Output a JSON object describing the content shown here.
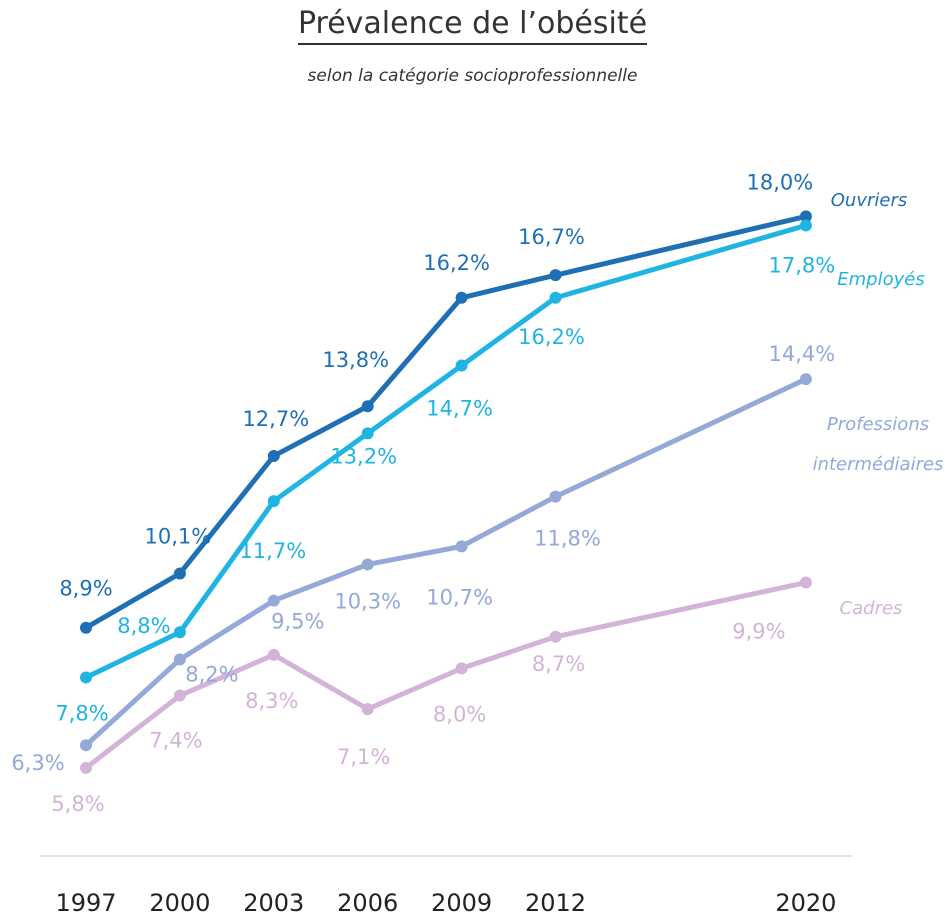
{
  "chart_data": {
    "type": "line",
    "title": "Prévalence de l’obésité",
    "subtitle": "selon la catégorie socioprofessionnelle",
    "x": [
      "1997",
      "2000",
      "2003",
      "2006",
      "2009",
      "2012",
      "2020"
    ],
    "series": [
      {
        "name": "Ouvriers",
        "color": "#1f6fb4",
        "values": [
          8.9,
          10.1,
          12.7,
          13.8,
          16.2,
          16.7,
          18.0
        ],
        "labels": [
          "8,9%",
          "10,1%",
          "12,7%",
          "13,8%",
          "16,2%",
          "16,7%",
          "18,0%"
        ]
      },
      {
        "name": "Employés",
        "color": "#20b4e3",
        "values": [
          7.8,
          8.8,
          11.7,
          13.2,
          14.7,
          16.2,
          17.8
        ],
        "labels": [
          "7,8%",
          "8,8%",
          "11,7%",
          "13,2%",
          "14,7%",
          "16,2%",
          "17,8%"
        ]
      },
      {
        "name": "Professions intermédiaires",
        "color": "#94a9d8",
        "values": [
          6.3,
          8.2,
          9.5,
          10.3,
          10.7,
          11.8,
          14.4
        ],
        "labels": [
          "6,3%",
          "8,2%",
          "9,5%",
          "10,3%",
          "10,7%",
          "11,8%",
          "14,4%"
        ]
      },
      {
        "name": "Cadres",
        "color": "#d4b3d8",
        "values": [
          5.8,
          7.4,
          8.3,
          7.1,
          8.0,
          8.7,
          9.9
        ],
        "labels": [
          "5,8%",
          "7,4%",
          "8,3%",
          "7,1%",
          "8,0%",
          "8,7%",
          "9,9%"
        ]
      }
    ],
    "legend_placement": "inline-right",
    "grid": false
  }
}
